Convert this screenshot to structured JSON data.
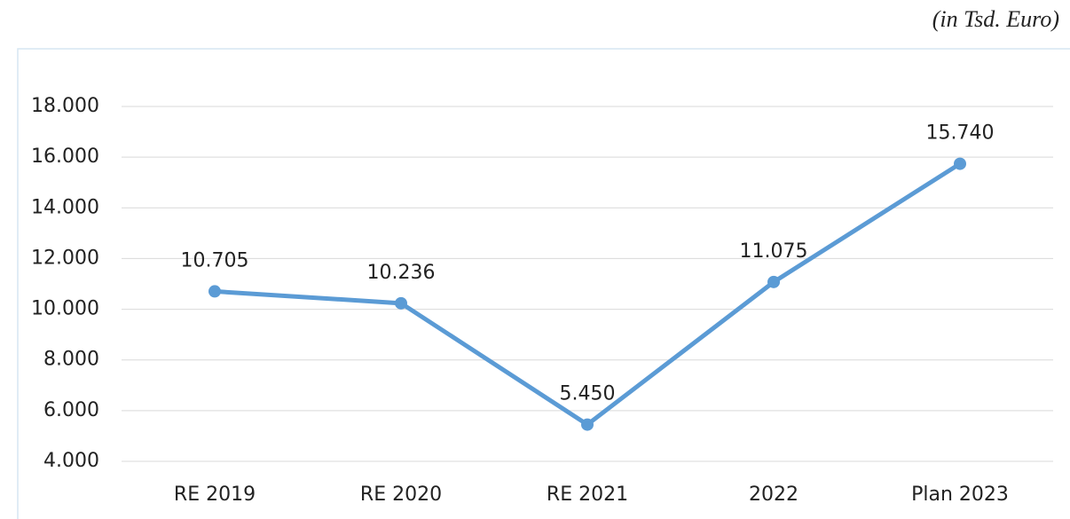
{
  "chart_data": {
    "type": "line",
    "subtitle": "(in Tsd. Euro)",
    "categories": [
      "RE 2019",
      "RE 2020",
      "RE 2021",
      "2022",
      "Plan 2023"
    ],
    "values": [
      10705,
      10236,
      5450,
      11075,
      15740
    ],
    "value_labels": [
      "10.705",
      "10.236",
      "5.450",
      "11.075",
      "15.740"
    ],
    "color": "#5b9bd5",
    "ylim": [
      4000,
      18000
    ],
    "yticks": [
      {
        "value": 4000,
        "label": "4.000"
      },
      {
        "value": 6000,
        "label": "6.000"
      },
      {
        "value": 8000,
        "label": "8.000"
      },
      {
        "value": 10000,
        "label": "10.000"
      },
      {
        "value": 12000,
        "label": "12.000"
      },
      {
        "value": 14000,
        "label": "14.000"
      },
      {
        "value": 16000,
        "label": "16.000"
      },
      {
        "value": 18000,
        "label": "18.000"
      }
    ],
    "grid": true
  }
}
